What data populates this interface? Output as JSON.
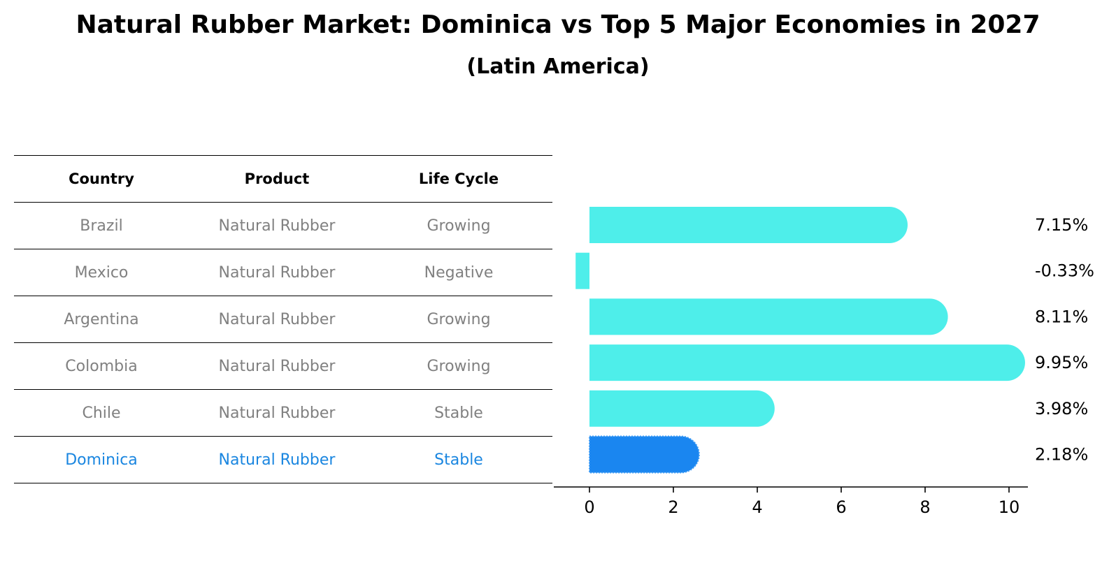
{
  "title": "Natural Rubber Market: Dominica vs Top 5 Major Economies in 2027",
  "subtitle": "(Latin America)",
  "table": {
    "headers": [
      "Country",
      "Product",
      "Life Cycle"
    ],
    "rows": [
      {
        "country": "Brazil",
        "product": "Natural Rubber",
        "life_cycle": "Growing"
      },
      {
        "country": "Mexico",
        "product": "Natural Rubber",
        "life_cycle": "Negative"
      },
      {
        "country": "Argentina",
        "product": "Natural Rubber",
        "life_cycle": "Growing"
      },
      {
        "country": "Colombia",
        "product": "Natural Rubber",
        "life_cycle": "Growing"
      },
      {
        "country": "Chile",
        "product": "Natural Rubber",
        "life_cycle": "Stable"
      },
      {
        "country": "Dominica",
        "product": "Natural Rubber",
        "life_cycle": "Stable"
      }
    ]
  },
  "colors": {
    "bar": "#4eeeea",
    "highlight": "#1a86f0",
    "highlight_text": "#1a86e0",
    "row_text": "#808080"
  },
  "chart_data": {
    "type": "bar",
    "orientation": "horizontal",
    "categories": [
      "Brazil",
      "Mexico",
      "Argentina",
      "Colombia",
      "Chile",
      "Dominica"
    ],
    "values": [
      7.15,
      -0.33,
      8.11,
      9.95,
      3.98,
      2.18
    ],
    "value_labels": [
      "7.15%",
      "-0.33%",
      "8.11%",
      "9.95%",
      "3.98%",
      "2.18%"
    ],
    "highlight": "Dominica",
    "xlim": [
      -0.85,
      10.45
    ],
    "xticks": [
      0,
      2,
      4,
      6,
      8,
      10
    ],
    "title": "Natural Rubber Market: Dominica vs Top 5 Major Economies in 2027",
    "xlabel": "",
    "ylabel": ""
  }
}
